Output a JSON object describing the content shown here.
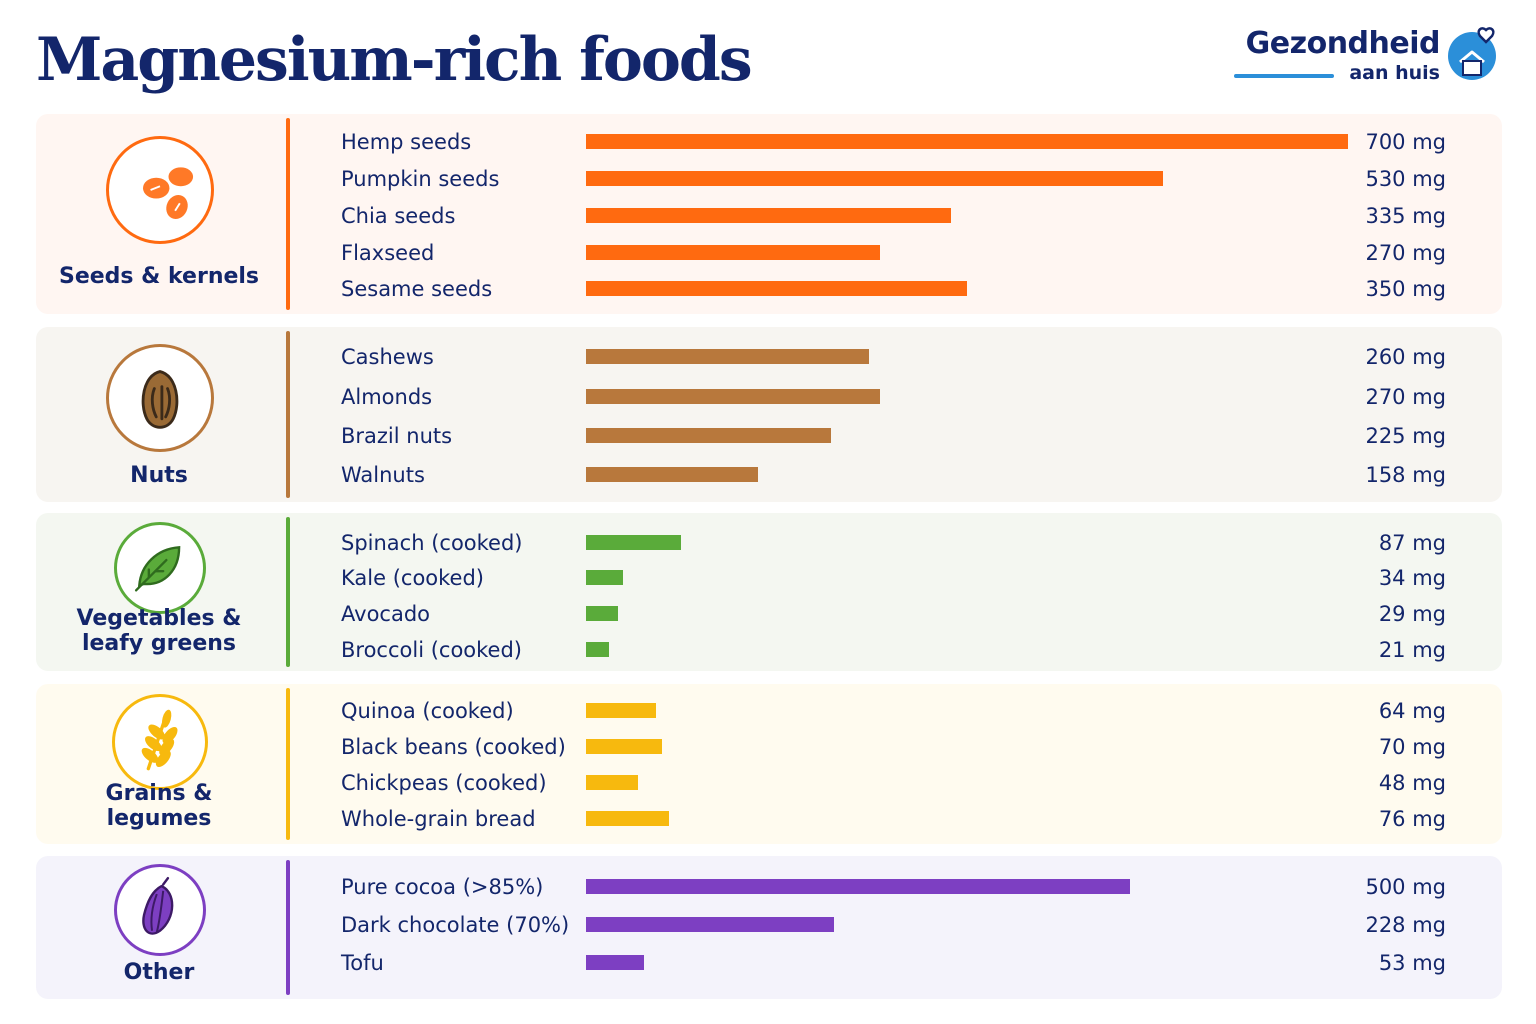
{
  "title": "Magnesium-rich foods",
  "logo": {
    "brand": "Gezondheid",
    "sub": "aan huis"
  },
  "colors": {
    "title": "#13266b",
    "logo_accent": "#2b8fd9",
    "bar_max": 700
  },
  "chart_data": {
    "type": "bar",
    "orientation": "horizontal",
    "title": "Magnesium-rich foods",
    "unit": "mg",
    "groups": [
      {
        "name": "Seeds & kernels",
        "label_lines": [
          "Seeds & kernels"
        ],
        "icon": "seeds-icon",
        "color": "#ff6a10",
        "panel_bg": "#fff6f2",
        "items": [
          {
            "label": "Hemp seeds",
            "value": 700,
            "value_label": "700 mg"
          },
          {
            "label": "Pumpkin seeds",
            "value": 530,
            "value_label": "530 mg"
          },
          {
            "label": "Chia seeds",
            "value": 335,
            "value_label": "335 mg"
          },
          {
            "label": "Flaxseed",
            "value": 270,
            "value_label": "270 mg"
          },
          {
            "label": "Sesame seeds",
            "value": 350,
            "value_label": "350 mg"
          }
        ]
      },
      {
        "name": "Nuts",
        "label_lines": [
          "Nuts"
        ],
        "icon": "nut-icon",
        "color": "#b8783c",
        "panel_bg": "#f7f5f1",
        "items": [
          {
            "label": "Cashews",
            "value": 260,
            "value_label": "260 mg"
          },
          {
            "label": "Almonds",
            "value": 270,
            "value_label": "270 mg"
          },
          {
            "label": "Brazil nuts",
            "value": 225,
            "value_label": "225 mg"
          },
          {
            "label": "Walnuts",
            "value": 158,
            "value_label": "158 mg"
          }
        ]
      },
      {
        "name": "Vegetables & leafy greens",
        "label_lines": [
          "Vegetables &",
          "leafy greens"
        ],
        "icon": "leaf-icon",
        "color": "#5aab3a",
        "panel_bg": "#f4f7f1",
        "items": [
          {
            "label": "Spinach (cooked)",
            "value": 87,
            "value_label": "87 mg"
          },
          {
            "label": "Kale (cooked)",
            "value": 34,
            "value_label": "34 mg"
          },
          {
            "label": "Avocado",
            "value": 29,
            "value_label": "29 mg"
          },
          {
            "label": "Broccoli (cooked)",
            "value": 21,
            "value_label": "21 mg"
          }
        ]
      },
      {
        "name": "Grains & legumes",
        "label_lines": [
          "Grains &",
          "legumes"
        ],
        "icon": "wheat-icon",
        "color": "#f7b90e",
        "panel_bg": "#fffbef",
        "items": [
          {
            "label": "Quinoa (cooked)",
            "value": 64,
            "value_label": "64 mg"
          },
          {
            "label": "Black beans (cooked)",
            "value": 70,
            "value_label": "70 mg"
          },
          {
            "label": "Chickpeas (cooked)",
            "value": 48,
            "value_label": "48 mg"
          },
          {
            "label": "Whole-grain bread",
            "value": 76,
            "value_label": "76 mg"
          }
        ]
      },
      {
        "name": "Other",
        "label_lines": [
          "Other"
        ],
        "icon": "cocoa-icon",
        "color": "#7d3fc2",
        "panel_bg": "#f4f3fb",
        "items": [
          {
            "label": "Pure cocoa (>85%)",
            "value": 500,
            "value_label": "500 mg"
          },
          {
            "label": "Dark chocolate (70%)",
            "value": 228,
            "value_label": "228 mg"
          },
          {
            "label": "Tofu",
            "value": 53,
            "value_label": "53 mg"
          }
        ]
      }
    ]
  }
}
